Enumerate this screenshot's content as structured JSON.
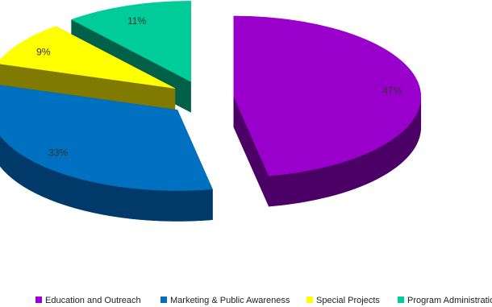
{
  "chart_data": {
    "type": "pie",
    "style": "3d-exploded",
    "title": "",
    "legend_position": "bottom",
    "slices": [
      {
        "name": "Education and Outreach",
        "value": 47,
        "label": "47%",
        "color": "#9900CC",
        "side_color": "#4B0066"
      },
      {
        "name": "Marketing & Public Awareness",
        "value": 33,
        "label": "33%",
        "color": "#0070C0",
        "side_color": "#003A6A"
      },
      {
        "name": "Special Projects",
        "value": 9,
        "label": "9%",
        "color": "#FFFF00",
        "side_color": "#807A00"
      },
      {
        "name": "Program Administration",
        "value": 11,
        "label": "11%",
        "color": "#00CC99",
        "side_color": "#006048"
      }
    ]
  }
}
